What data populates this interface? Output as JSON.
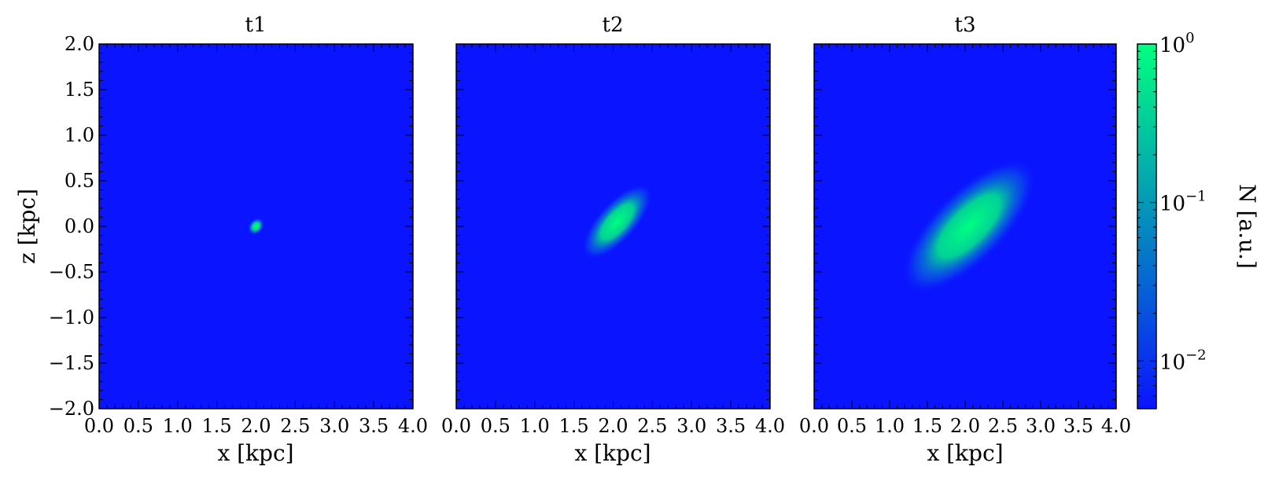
{
  "chart_data": [
    {
      "type": "heatmap",
      "title": "t1",
      "xlabel": "x [kpc]",
      "ylabel": "z [kpc]",
      "xlim": [
        0.0,
        4.0
      ],
      "ylim": [
        -2.0,
        2.0
      ],
      "xticks": [
        "0.0",
        "0.5",
        "1.0",
        "1.5",
        "2.0",
        "2.5",
        "3.0",
        "3.5",
        "4.0"
      ],
      "yticks": [
        "2.0",
        "1.5",
        "1.0",
        "0.5",
        "0.0",
        "−0.5",
        "−1.0",
        "−1.5",
        "−2.0"
      ],
      "blob": {
        "center_x": 2.0,
        "center_z": 0.0,
        "semi_major": 0.12,
        "semi_minor": 0.08,
        "angle_deg": 50,
        "peak": 1.0
      }
    },
    {
      "type": "heatmap",
      "title": "t2",
      "xlabel": "x [kpc]",
      "ylabel": "",
      "xlim": [
        0.0,
        4.0
      ],
      "ylim": [
        -2.0,
        2.0
      ],
      "xticks": [
        "0.0",
        "0.5",
        "1.0",
        "1.5",
        "2.0",
        "2.5",
        "3.0",
        "3.5",
        "4.0"
      ],
      "blob": {
        "center_x": 2.05,
        "center_z": 0.05,
        "semi_major": 0.62,
        "semi_minor": 0.22,
        "angle_deg": 48,
        "peak": 1.0
      }
    },
    {
      "type": "heatmap",
      "title": "t3",
      "xlabel": "x [kpc]",
      "ylabel": "",
      "xlim": [
        0.0,
        4.0
      ],
      "ylim": [
        -2.0,
        2.0
      ],
      "xticks": [
        "0.0",
        "0.5",
        "1.0",
        "1.5",
        "2.0",
        "2.5",
        "3.0",
        "3.5",
        "4.0"
      ],
      "blob": {
        "center_x": 2.05,
        "center_z": 0.0,
        "semi_major": 1.18,
        "semi_minor": 0.4,
        "angle_deg": 45,
        "peak": 1.0
      }
    }
  ],
  "colorbar": {
    "title": "N [a.u.]",
    "scale": "log",
    "ticks": [
      {
        "base": "10",
        "exp": "0",
        "value": 1.0
      },
      {
        "base": "10",
        "exp": "−1",
        "value": 0.1
      },
      {
        "base": "10",
        "exp": "−2",
        "value": 0.01
      }
    ],
    "vmin": 0.005,
    "vmax": 1.0,
    "color_low": "#0a14ff",
    "color_high": "#00ff80"
  }
}
